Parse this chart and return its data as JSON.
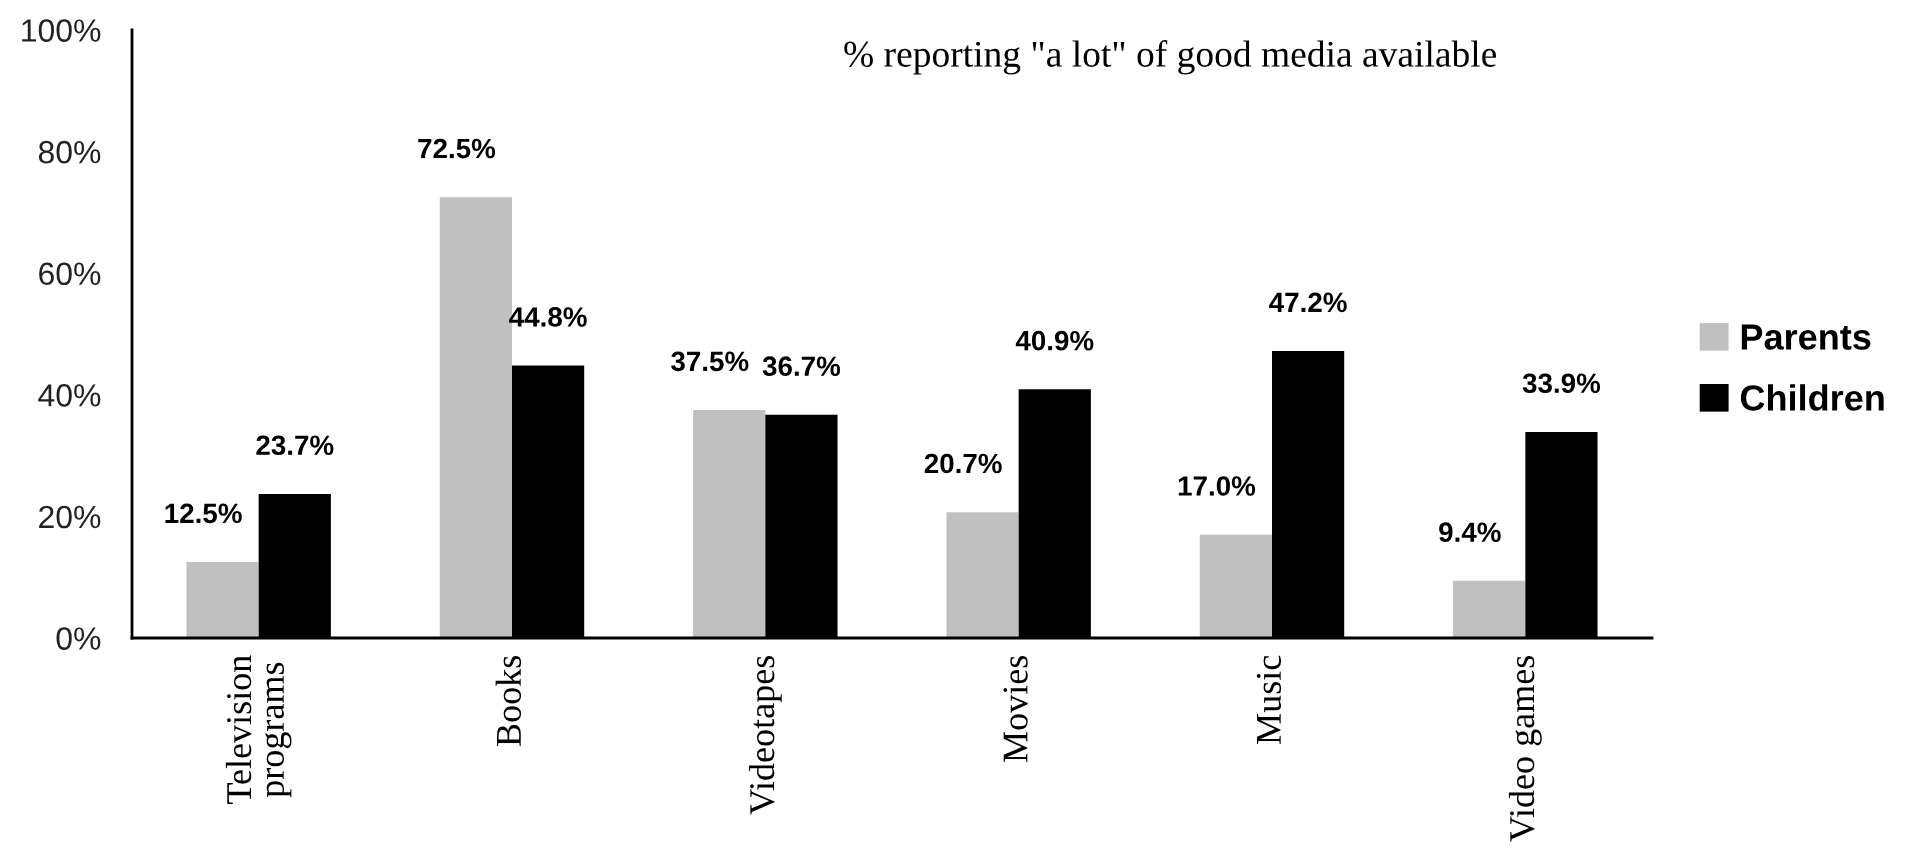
{
  "chart_data": {
    "type": "bar",
    "title": "% reporting \"a lot\" of good media available",
    "categories": [
      "Television\nprograms",
      "Books",
      "Videotapes",
      "Movies",
      "Music",
      "Video games"
    ],
    "series": [
      {
        "name": "Parents",
        "color": "#c0c0c0",
        "values": [
          12.5,
          72.5,
          37.5,
          20.7,
          17.0,
          9.4
        ],
        "value_labels": [
          "12.5%",
          "72.5%",
          "37.5%",
          "20.7%",
          "17.0%",
          "9.4%"
        ]
      },
      {
        "name": "Children",
        "color": "#000000",
        "values": [
          23.7,
          44.8,
          36.7,
          40.9,
          47.2,
          33.9
        ],
        "value_labels": [
          "23.7%",
          "44.8%",
          "36.7%",
          "40.9%",
          "47.2%",
          "33.9%"
        ]
      }
    ],
    "ylim": [
      0,
      100
    ],
    "yticks": [
      {
        "value": 0,
        "label": "0%"
      },
      {
        "value": 20,
        "label": "20%"
      },
      {
        "value": 40,
        "label": "40%"
      },
      {
        "value": 60,
        "label": "60%"
      },
      {
        "value": 80,
        "label": "80%"
      },
      {
        "value": 100,
        "label": "100%"
      }
    ],
    "grid": false,
    "legend": "right"
  }
}
